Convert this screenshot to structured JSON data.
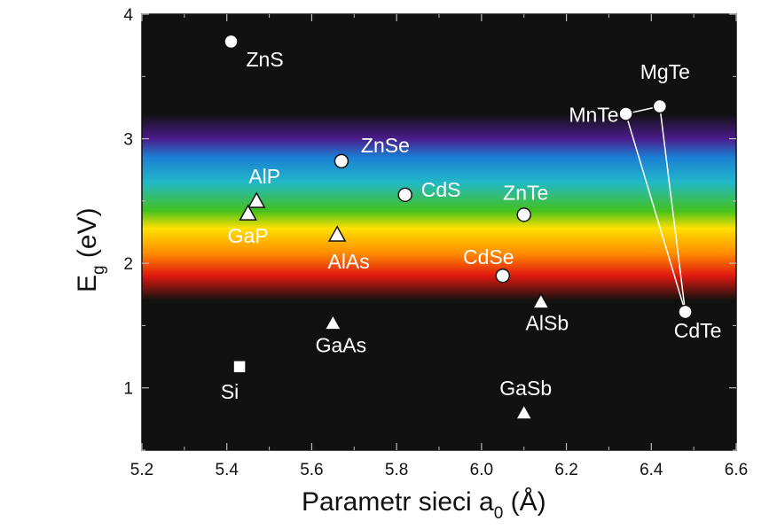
{
  "chart_data": {
    "type": "scatter",
    "xlabel_main": "Parametr sieci a",
    "xlabel_sub": "0",
    "xlabel_unit": " (Å)",
    "ylabel_main": "E",
    "ylabel_sub": "g",
    "ylabel_unit": " (eV)",
    "xlim": [
      5.2,
      6.6
    ],
    "ylim": [
      0.5,
      4.0
    ],
    "x_ticks": [
      "5.2",
      "5.4",
      "5.6",
      "5.8",
      "6.0",
      "6.2",
      "6.4",
      "6.6"
    ],
    "y_ticks": [
      "1",
      "2",
      "3",
      "4"
    ],
    "background_colors": {
      "dark": "#111111",
      "violet": "#4b1c8c",
      "blue": "#1a7fd4",
      "cyan": "#22b8c8",
      "green": "#44c21c",
      "yellow": "#ffe000",
      "orange": "#ff8c00",
      "red": "#e01810"
    },
    "points": [
      {
        "label": "ZnS",
        "x": 5.41,
        "y": 3.78,
        "marker": "circle"
      },
      {
        "label": "ZnSe",
        "x": 5.67,
        "y": 2.82,
        "marker": "circle"
      },
      {
        "label": "CdS",
        "x": 5.82,
        "y": 2.55,
        "marker": "circle"
      },
      {
        "label": "ZnTe",
        "x": 6.1,
        "y": 2.39,
        "marker": "circle"
      },
      {
        "label": "CdSe",
        "x": 6.05,
        "y": 1.9,
        "marker": "circle"
      },
      {
        "label": "MnTe",
        "x": 6.34,
        "y": 3.2,
        "marker": "circle"
      },
      {
        "label": "MgTe",
        "x": 6.42,
        "y": 3.26,
        "marker": "circle"
      },
      {
        "label": "CdTe",
        "x": 6.48,
        "y": 1.61,
        "marker": "circle"
      },
      {
        "label": "AlP",
        "x": 5.47,
        "y": 2.5,
        "marker": "triangle"
      },
      {
        "label": "GaP",
        "x": 5.45,
        "y": 2.4,
        "marker": "triangle"
      },
      {
        "label": "AlAs",
        "x": 5.66,
        "y": 2.23,
        "marker": "triangle"
      },
      {
        "label": "GaAs",
        "x": 5.65,
        "y": 1.52,
        "marker": "triangle"
      },
      {
        "label": "AlSb",
        "x": 6.14,
        "y": 1.69,
        "marker": "triangle"
      },
      {
        "label": "GaSb",
        "x": 6.1,
        "y": 0.8,
        "marker": "triangle"
      },
      {
        "label": "Si",
        "x": 5.43,
        "y": 1.17,
        "marker": "square"
      }
    ],
    "connectors": [
      {
        "from": "MnTe",
        "to": "MgTe"
      },
      {
        "from": "MnTe",
        "to": "CdTe"
      },
      {
        "from": "MgTe",
        "to": "CdTe"
      }
    ]
  }
}
